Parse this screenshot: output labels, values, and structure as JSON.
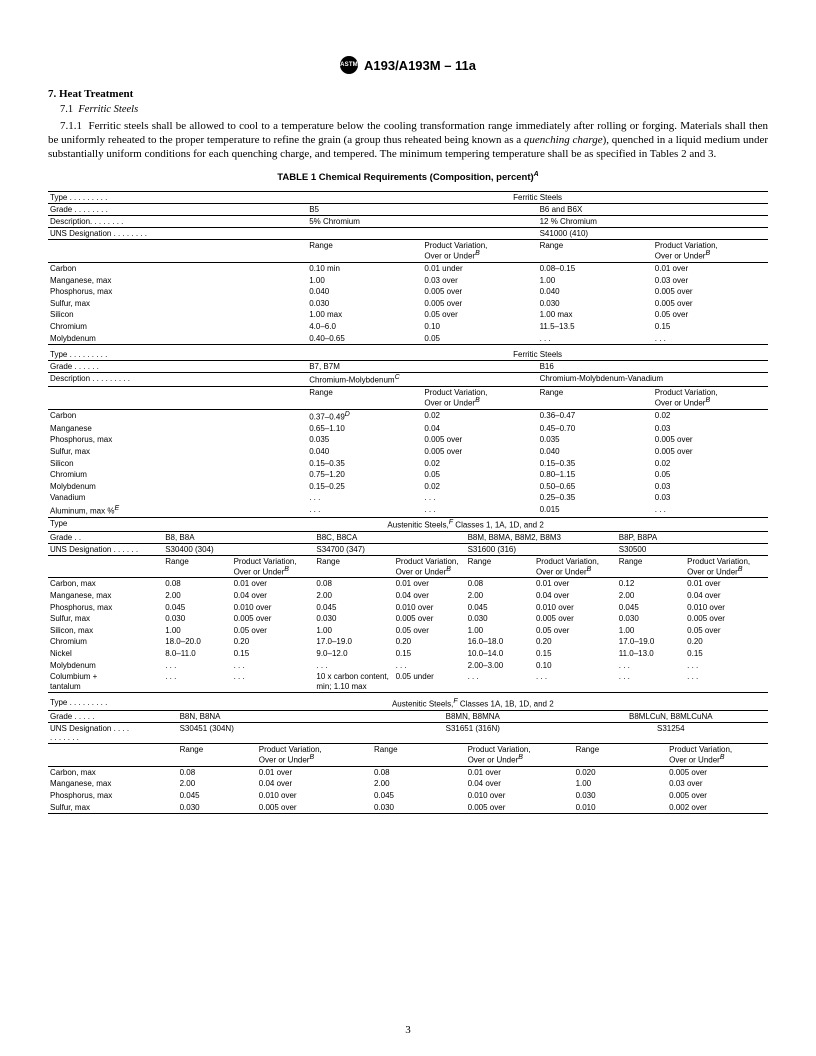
{
  "header": {
    "logo_text": "ASTM",
    "doc_id": "A193/A193M – 11a"
  },
  "section": {
    "number": "7.",
    "title": "Heat Treatment",
    "sub_number": "7.1",
    "sub_title": "Ferritic Steels",
    "para_number": "7.1.1",
    "para_text": "Ferritic steels shall be allowed to cool to a temperature below the cooling transformation range immediately after rolling or forging. Materials shall then be uniformly reheated to the proper temperature to refine the grain (a group thus reheated being known as a quenching charge), quenched in a liquid medium under substantially uniform conditions for each quenching charge, and tempered. The minimum tempering temperature shall be as specified in Tables 2 and 3.",
    "para_italic": "quenching charge"
  },
  "table1": {
    "title": "TABLE 1   Chemical Requirements (Composition, percent)",
    "title_sup": "A",
    "labels": {
      "type": "Type",
      "grade": "Grade",
      "description": "Description",
      "uns": "UNS Designation",
      "range": "Range",
      "prodvar": "Product Variation,",
      "overunder": "Over or Under"
    },
    "block1": {
      "type": "Ferritic Steels",
      "grades": [
        "B5",
        "B6 and B6X"
      ],
      "descs": [
        "5% Chromium",
        "12 % Chromium"
      ],
      "uns": [
        "",
        "S41000 (410)"
      ],
      "elements": [
        {
          "n": "Carbon",
          "r1": "0.10 min",
          "p1": "0.01 under",
          "r2": "0.08–0.15",
          "p2": "0.01 over"
        },
        {
          "n": "Manganese, max",
          "r1": "1.00",
          "p1": "0.03 over",
          "r2": "1.00",
          "p2": "0.03 over"
        },
        {
          "n": "Phosphorus, max",
          "r1": "0.040",
          "p1": "0.005 over",
          "r2": "0.040",
          "p2": "0.005 over"
        },
        {
          "n": "Sulfur, max",
          "r1": "0.030",
          "p1": "0.005 over",
          "r2": "0.030",
          "p2": "0.005 over"
        },
        {
          "n": "Silicon",
          "r1": "1.00 max",
          "p1": "0.05 over",
          "r2": "1.00 max",
          "p2": "0.05 over"
        },
        {
          "n": "Chromium",
          "r1": "4.0–6.0",
          "p1": "0.10",
          "r2": "11.5–13.5",
          "p2": "0.15"
        },
        {
          "n": "Molybdenum",
          "r1": "0.40–0.65",
          "p1": "0.05",
          "r2": ". . .",
          "p2": ". . ."
        }
      ]
    },
    "block2": {
      "type": "Ferritic Steels",
      "grades": [
        "B7, B7M",
        "B16"
      ],
      "descs": [
        "Chromium-Molybdenum",
        "Chromium-Molybdenum-Vanadium"
      ],
      "desc1_sup": "C",
      "elements": [
        {
          "n": "Carbon",
          "r1": "0.37–0.49",
          "r1s": "D",
          "p1": "0.02",
          "r2": "0.36–0.47",
          "p2": "0.02"
        },
        {
          "n": "Manganese",
          "r1": "0.65–1.10",
          "p1": "0.04",
          "r2": "0.45–0.70",
          "p2": "0.03"
        },
        {
          "n": "Phosphorus, max",
          "r1": "0.035",
          "p1": "0.005 over",
          "r2": "0.035",
          "p2": "0.005 over"
        },
        {
          "n": "Sulfur, max",
          "r1": "0.040",
          "p1": "0.005 over",
          "r2": "0.040",
          "p2": "0.005 over"
        },
        {
          "n": "Silicon",
          "r1": "0.15–0.35",
          "p1": "0.02",
          "r2": "0.15–0.35",
          "p2": "0.02"
        },
        {
          "n": "Chromium",
          "r1": "0.75–1.20",
          "p1": "0.05",
          "r2": "0.80–1.15",
          "p2": "0.05"
        },
        {
          "n": "Molybdenum",
          "r1": "0.15–0.25",
          "p1": "0.02",
          "r2": "0.50–0.65",
          "p2": "0.03"
        },
        {
          "n": "Vanadium",
          "r1": ". . .",
          "p1": ". . .",
          "r2": "0.25–0.35",
          "p2": "0.03"
        },
        {
          "n": "Aluminum, max %",
          "ns": "E",
          "r1": ". . .",
          "p1": ". . .",
          "r2": "0.015",
          "p2": ". . ."
        }
      ]
    },
    "block3": {
      "type": "Austenitic Steels,",
      "type_sup": "F",
      "type_tail": " Classes 1, 1A, 1D, and 2",
      "grades": [
        "B8, B8A",
        "B8C, B8CA",
        "B8M, B8MA, B8M2, B8M3",
        "B8P, B8PA"
      ],
      "uns": [
        "S30400 (304)",
        "S34700 (347)",
        "S31600 (316)",
        "S30500"
      ],
      "elements": [
        {
          "n": "Carbon, max",
          "c": [
            [
              "0.08",
              "0.01 over"
            ],
            [
              "0.08",
              "0.01 over"
            ],
            [
              "0.08",
              "0.01 over"
            ],
            [
              "0.12",
              "0.01 over"
            ]
          ]
        },
        {
          "n": "Manganese, max",
          "c": [
            [
              "2.00",
              "0.04 over"
            ],
            [
              "2.00",
              "0.04 over"
            ],
            [
              "2.00",
              "0.04 over"
            ],
            [
              "2.00",
              "0.04 over"
            ]
          ]
        },
        {
          "n": "Phosphorus, max",
          "c": [
            [
              "0.045",
              "0.010 over"
            ],
            [
              "0.045",
              "0.010 over"
            ],
            [
              "0.045",
              "0.010 over"
            ],
            [
              "0.045",
              "0.010 over"
            ]
          ]
        },
        {
          "n": "Sulfur, max",
          "c": [
            [
              "0.030",
              "0.005 over"
            ],
            [
              "0.030",
              "0.005 over"
            ],
            [
              "0.030",
              "0.005 over"
            ],
            [
              "0.030",
              "0.005 over"
            ]
          ]
        },
        {
          "n": "Silicon, max",
          "c": [
            [
              "1.00",
              "0.05 over"
            ],
            [
              "1.00",
              "0.05 over"
            ],
            [
              "1.00",
              "0.05 over"
            ],
            [
              "1.00",
              "0.05 over"
            ]
          ]
        },
        {
          "n": "Chromium",
          "c": [
            [
              "18.0–20.0",
              "0.20"
            ],
            [
              "17.0–19.0",
              "0.20"
            ],
            [
              "16.0–18.0",
              "0.20"
            ],
            [
              "17.0–19.0",
              "0.20"
            ]
          ]
        },
        {
          "n": "Nickel",
          "c": [
            [
              "8.0–11.0",
              "0.15"
            ],
            [
              "9.0–12.0",
              "0.15"
            ],
            [
              "10.0–14.0",
              "0.15"
            ],
            [
              "11.0–13.0",
              "0.15"
            ]
          ]
        },
        {
          "n": "Molybdenum",
          "c": [
            [
              ". . .",
              ". . ."
            ],
            [
              ". . .",
              ". . ."
            ],
            [
              "2.00–3.00",
              "0.10"
            ],
            [
              ". . .",
              ". . ."
            ]
          ]
        },
        {
          "n": "Columbium + tantalum",
          "c": [
            [
              ". . .",
              ". . ."
            ],
            [
              "10 x carbon content, min; 1.10 max",
              "0.05 under"
            ],
            [
              ". . .",
              ". . ."
            ],
            [
              ". . .",
              ". . ."
            ]
          ]
        }
      ]
    },
    "block4": {
      "type": "Austenitic Steels,",
      "type_sup": "F",
      "type_tail": " Classes 1A, 1B, 1D, and 2",
      "grades": [
        "B8N, B8NA",
        "B8MN, B8MNA",
        "B8MLCuN, B8MLCuNA"
      ],
      "uns": [
        "S30451 (304N)",
        "S31651 (316N)",
        "S31254"
      ],
      "elements": [
        {
          "n": "Carbon, max",
          "c": [
            [
              "0.08",
              "0.01 over"
            ],
            [
              "0.08",
              "0.01 over"
            ],
            [
              "0.020",
              "0.005 over"
            ]
          ]
        },
        {
          "n": "Manganese, max",
          "c": [
            [
              "2.00",
              "0.04 over"
            ],
            [
              "2.00",
              "0.04 over"
            ],
            [
              "1.00",
              "0.03 over"
            ]
          ]
        },
        {
          "n": "Phosphorus, max",
          "c": [
            [
              "0.045",
              "0.010 over"
            ],
            [
              "0.045",
              "0.010 over"
            ],
            [
              "0.030",
              "0.005 over"
            ]
          ]
        },
        {
          "n": "Sulfur, max",
          "c": [
            [
              "0.030",
              "0.005 over"
            ],
            [
              "0.030",
              "0.005 over"
            ],
            [
              "0.010",
              "0.002 over"
            ]
          ]
        }
      ]
    }
  },
  "page_number": "3"
}
